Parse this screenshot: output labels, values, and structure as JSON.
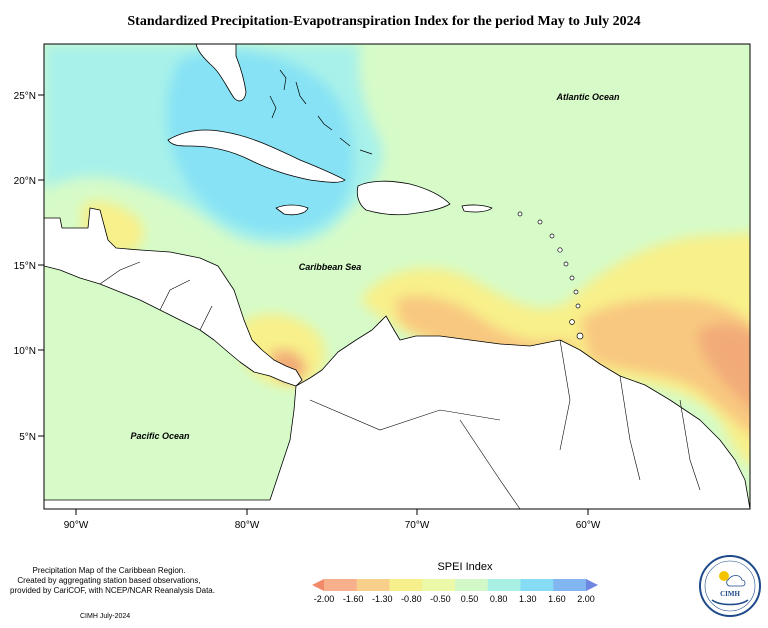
{
  "title": "Standardized Precipitation-Evapotranspiration Index for the period May to July 2024",
  "map": {
    "labels": {
      "atlantic": "Atlantic Ocean",
      "caribbean": "Caribbean Sea",
      "pacific": "Pacific Ocean"
    },
    "lat_ticks": [
      "25°N",
      "20°N",
      "15°N",
      "10°N",
      "5°N"
    ],
    "lon_ticks": [
      "90°W",
      "80°W",
      "70°W",
      "60°W"
    ],
    "colors": {
      "background_near_normal": "#d6fbc8",
      "light_cyan": "#a8f1ea",
      "cyan": "#86e2f4",
      "blue": "#7fa4f0",
      "purple": "#7070e6",
      "yellow": "#f8f08a",
      "orange": "#f8c880",
      "dark_orange": "#f2ab78",
      "land": "#ffffff"
    }
  },
  "credit": {
    "line1": "Precipitation Map of the Caribbean Region.",
    "line2": "Created by aggregating station based observations,",
    "line3": "provided by CariCOF, with NCEP/NCAR Reanalysis Data."
  },
  "footer_note": "CIMH July-2024",
  "legend": {
    "title": "SPEI Index",
    "ticks": [
      "-2.00",
      "-1.60",
      "-1.30",
      "-0.80",
      "-0.50",
      "0.50",
      "0.80",
      "1.30",
      "1.60",
      "2.00"
    ],
    "colors": [
      "#f08a6a",
      "#f6b08c",
      "#f8d08c",
      "#f7ee8c",
      "#ecf9a8",
      "#d2f8c8",
      "#a8f0e4",
      "#86dcf4",
      "#82b6f0",
      "#6e86e2"
    ]
  },
  "logo": {
    "text": "CIMH"
  }
}
